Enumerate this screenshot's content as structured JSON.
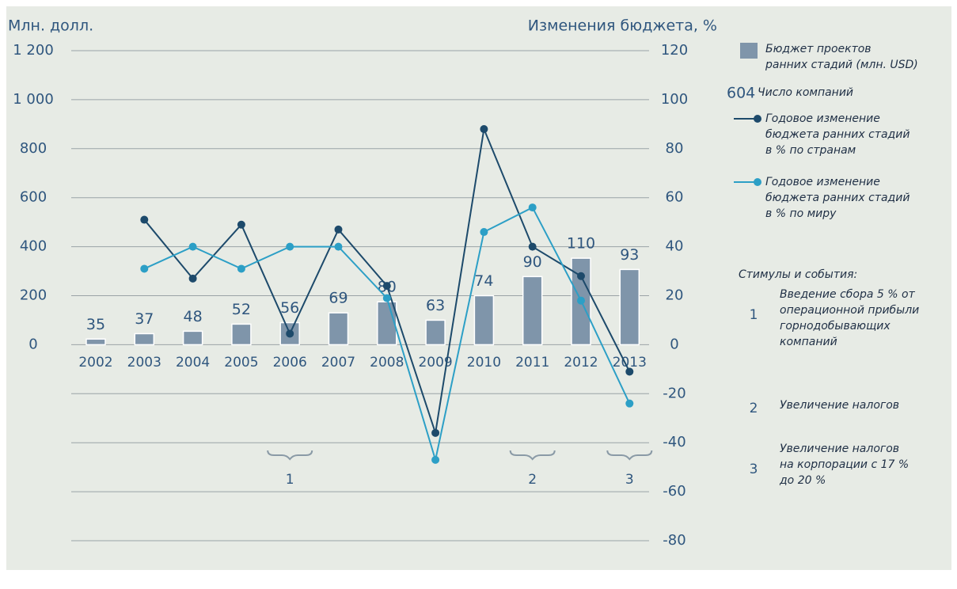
{
  "chart_data": {
    "type": "bar_line",
    "y_label": "Млн. долл.",
    "y2_label": "Изменения бюджета, %",
    "categories": [
      "2002",
      "2003",
      "2004",
      "2005",
      "2006",
      "2007",
      "2008",
      "2009",
      "2010",
      "2011",
      "2012",
      "2013"
    ],
    "series": [
      {
        "name": [
          "Бюджет проектов",
          "ранних стадий (млн. USD)"
        ],
        "type": "bar",
        "color": "#7f95aa",
        "values": [
          23,
          45,
          55,
          84,
          90,
          130,
          175,
          100,
          200,
          278,
          353,
          307
        ],
        "bar_labels": [
          35,
          37,
          48,
          52,
          56,
          69,
          80,
          63,
          74,
          90,
          110,
          93
        ]
      },
      {
        "name": [
          "Годовое изменение",
          "бюджета ранних стадий",
          "в % по странам"
        ],
        "type": "line",
        "axis": "y2",
        "color": "#1d4a6b",
        "values": [
          null,
          51,
          27,
          49,
          4.5,
          47,
          24,
          -36,
          88,
          40,
          28,
          -11
        ]
      },
      {
        "name": [
          "Годовое изменение",
          "бюджета ранних стадий",
          "в % по миру"
        ],
        "type": "line",
        "axis": "y2",
        "color": "#2c9fc6",
        "values": [
          null,
          31,
          40,
          31,
          40,
          40,
          19,
          -47,
          46,
          56,
          18,
          -24
        ]
      }
    ],
    "bar_labels_legend": {
      "sample": "604",
      "text": "Число компаний"
    },
    "ylim": [
      -800,
      1200
    ],
    "yticks": [
      0,
      200,
      400,
      600,
      800,
      {
        "value": 1000,
        "label": "1 000"
      },
      {
        "value": 1200,
        "label": "1 200"
      }
    ],
    "y2lim": [
      -80,
      120
    ],
    "y2ticks": [
      -80,
      -60,
      -40,
      -20,
      0,
      20,
      40,
      60,
      80,
      100,
      120
    ],
    "grid": true,
    "events_title": "Стимулы и события:",
    "events": [
      {
        "label": "1",
        "text": [
          "Введение сбора 5 % от",
          "операционной прибыли",
          "горнодобывающих",
          "компаний"
        ]
      },
      {
        "label": "2",
        "text": [
          "Увеличение налогов"
        ]
      },
      {
        "label": "3",
        "text": [
          "Увеличение налогов",
          "на корпорации с 17 %",
          "до 20 %"
        ]
      }
    ],
    "annotations": [
      {
        "label": "1",
        "x": "2006"
      },
      {
        "label": "2",
        "x": "2011"
      },
      {
        "label": "3",
        "x": "2013"
      }
    ]
  }
}
